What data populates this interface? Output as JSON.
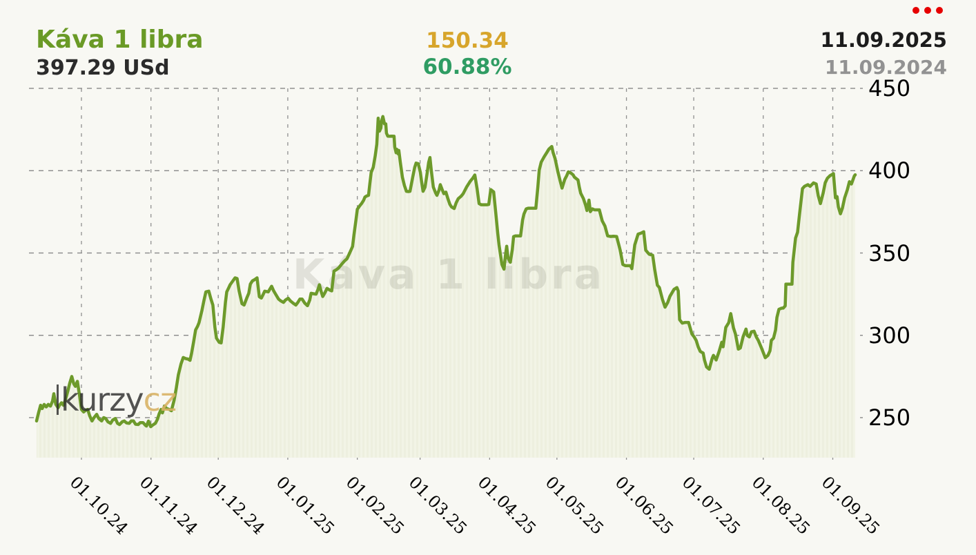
{
  "header": {
    "title": "Káva 1 libra",
    "price": "397.29 USd",
    "change_abs": "150.34",
    "change_pct": "60.88%",
    "date_current": "11.09.2025",
    "date_year_ago": "11.09.2024"
  },
  "watermark": "Káva 1 libra",
  "logo": {
    "text": "kurzy",
    "suffix": "cz"
  },
  "icons": {
    "menu": "red-three-dots-menu-icon"
  },
  "colors": {
    "background": "#f8f8f3",
    "line": "#6d9a2b",
    "area_fill": "#f2f4e6",
    "area_fill_stripe": "#edefdf",
    "grid": "#8f8f8f",
    "title_green": "#6a9a26",
    "change_gold": "#d7a52b",
    "change_green": "#2f9c63",
    "date_black": "#1c1c1c",
    "date_gray": "#929292",
    "menu_red": "#e60000",
    "watermark_gray": "rgba(70,70,55,0.13)",
    "logo_gold": "#d8b266"
  },
  "chart_data": {
    "type": "area",
    "title": "Káva 1 libra",
    "unit": "USd",
    "series_name": "Káva 1 libra",
    "x_start_date": "11.09.2024",
    "x_end_date": "11.09.2025",
    "grid": "dashed",
    "legend": "none",
    "ylim": [
      225,
      460
    ],
    "y_ticks": [
      450,
      400,
      350,
      300,
      250
    ],
    "x_ticks": [
      {
        "label": "01.10.24",
        "day": 20
      },
      {
        "label": "01.11.24",
        "day": 51
      },
      {
        "label": "01.12.24",
        "day": 81
      },
      {
        "label": "01.01.25",
        "day": 112
      },
      {
        "label": "01.02.25",
        "day": 143
      },
      {
        "label": "01.03.25",
        "day": 171
      },
      {
        "label": "01.04.25",
        "day": 202
      },
      {
        "label": "01.05.25",
        "day": 232
      },
      {
        "label": "01.06.25",
        "day": 263
      },
      {
        "label": "01.07.25",
        "day": 293
      },
      {
        "label": "01.08.25",
        "day": 324
      },
      {
        "label": "01.09.25",
        "day": 355
      }
    ],
    "points_format": [
      "days_from_2024-09-11",
      "price_USd"
    ],
    "points": [
      [
        0,
        248
      ],
      [
        0.9,
        253
      ],
      [
        1.8,
        257.5
      ],
      [
        2.5,
        255.5
      ],
      [
        3.4,
        258
      ],
      [
        4.3,
        256.5
      ],
      [
        5.2,
        258
      ],
      [
        6.2,
        257
      ],
      [
        7.1,
        260
      ],
      [
        7.7,
        264.5
      ],
      [
        8.6,
        258
      ],
      [
        9.6,
        256
      ],
      [
        10.2,
        257.5
      ],
      [
        11.1,
        259
      ],
      [
        12,
        257.5
      ],
      [
        12.9,
        261
      ],
      [
        13.9,
        266
      ],
      [
        14.8,
        271
      ],
      [
        15.7,
        275
      ],
      [
        16.6,
        270.5
      ],
      [
        17.3,
        269
      ],
      [
        18.2,
        272
      ],
      [
        19.1,
        264
      ],
      [
        20,
        255
      ],
      [
        21,
        253.5
      ],
      [
        21.9,
        254.5
      ],
      [
        22.8,
        255
      ],
      [
        23.7,
        251
      ],
      [
        24.7,
        248
      ],
      [
        25.6,
        250
      ],
      [
        26.8,
        252
      ],
      [
        27.7,
        249.5
      ],
      [
        29,
        248
      ],
      [
        29.9,
        250
      ],
      [
        30.8,
        249.5
      ],
      [
        31.8,
        247.5
      ],
      [
        33,
        246.5
      ],
      [
        33.9,
        248.5
      ],
      [
        35.1,
        249.5
      ],
      [
        36.1,
        246.5
      ],
      [
        37,
        245.8
      ],
      [
        38.2,
        247.5
      ],
      [
        39.1,
        248
      ],
      [
        40.1,
        246.8
      ],
      [
        41.3,
        246.5
      ],
      [
        42.2,
        248
      ],
      [
        43.2,
        248
      ],
      [
        44.1,
        246
      ],
      [
        45.3,
        245.8
      ],
      [
        46.2,
        247
      ],
      [
        47.5,
        247
      ],
      [
        48.4,
        245.5
      ],
      [
        49,
        244.9
      ],
      [
        49.9,
        247.9
      ],
      [
        50.9,
        244.5
      ],
      [
        51.8,
        245.5
      ],
      [
        53,
        246.6
      ],
      [
        53.9,
        249
      ],
      [
        54.6,
        252.1
      ],
      [
        55.5,
        255
      ],
      [
        56.1,
        252.9
      ],
      [
        57,
        257.1
      ],
      [
        58,
        255.5
      ],
      [
        59.2,
        255
      ],
      [
        60.1,
        254.2
      ],
      [
        61.3,
        260.5
      ],
      [
        62.3,
        268
      ],
      [
        63.2,
        276
      ],
      [
        64.4,
        282.7
      ],
      [
        65.4,
        286.5
      ],
      [
        66.6,
        285.8
      ],
      [
        67.5,
        285.6
      ],
      [
        68.4,
        284.8
      ],
      [
        69.1,
        289
      ],
      [
        70,
        296
      ],
      [
        70.9,
        303.3
      ],
      [
        71.8,
        305.5
      ],
      [
        72.4,
        307.6
      ],
      [
        73.7,
        315
      ],
      [
        74.6,
        321
      ],
      [
        75.5,
        326.4
      ],
      [
        76.8,
        326.8
      ],
      [
        77.7,
        322.2
      ],
      [
        78.6,
        318.4
      ],
      [
        79.5,
        305
      ],
      [
        80.2,
        298.3
      ],
      [
        81.4,
        295.8
      ],
      [
        82.3,
        295.4
      ],
      [
        83.2,
        305
      ],
      [
        84.2,
        320
      ],
      [
        84.8,
        326.4
      ],
      [
        85.7,
        329
      ],
      [
        86.3,
        330.7
      ],
      [
        87.5,
        333
      ],
      [
        88.5,
        334.9
      ],
      [
        89.4,
        334.5
      ],
      [
        90.3,
        327
      ],
      [
        91.6,
        319.2
      ],
      [
        92.5,
        318.4
      ],
      [
        93.7,
        322.6
      ],
      [
        94.6,
        325.5
      ],
      [
        95.3,
        331.1
      ],
      [
        96.2,
        333
      ],
      [
        97.4,
        334
      ],
      [
        98.3,
        334.9
      ],
      [
        99.3,
        323.4
      ],
      [
        100.2,
        322.6
      ],
      [
        101.1,
        325
      ],
      [
        101.7,
        326.8
      ],
      [
        103.3,
        326.4
      ],
      [
        104.2,
        328.5
      ],
      [
        104.8,
        329.8
      ],
      [
        105.7,
        327
      ],
      [
        107,
        324
      ],
      [
        107.9,
        322
      ],
      [
        108.8,
        321
      ],
      [
        110.1,
        320
      ],
      [
        111,
        321.5
      ],
      [
        112.2,
        322.5
      ],
      [
        113.1,
        321
      ],
      [
        114.4,
        319.5
      ],
      [
        115.6,
        318.4
      ],
      [
        116.5,
        320
      ],
      [
        117.4,
        322
      ],
      [
        118.4,
        322
      ],
      [
        119.6,
        319.5
      ],
      [
        120.8,
        318
      ],
      [
        121.8,
        321.5
      ],
      [
        122.4,
        325.5
      ],
      [
        123.6,
        325.2
      ],
      [
        124.6,
        325
      ],
      [
        125.5,
        328
      ],
      [
        126.1,
        330.7
      ],
      [
        127,
        326
      ],
      [
        127.6,
        323.6
      ],
      [
        128.6,
        326
      ],
      [
        129.5,
        328.5
      ],
      [
        130.7,
        327.5
      ],
      [
        131.6,
        327
      ],
      [
        132.6,
        339
      ],
      [
        133.8,
        340
      ],
      [
        134.7,
        341
      ],
      [
        135.9,
        343
      ],
      [
        137.2,
        345
      ],
      [
        138.4,
        346.5
      ],
      [
        139.6,
        350
      ],
      [
        140.9,
        354
      ],
      [
        141.5,
        361
      ],
      [
        142.4,
        370
      ],
      [
        143,
        376.6
      ],
      [
        144,
        378.5
      ],
      [
        144.9,
        380
      ],
      [
        145.8,
        382
      ],
      [
        146.4,
        384
      ],
      [
        147.3,
        384.7
      ],
      [
        148,
        385
      ],
      [
        148.6,
        392
      ],
      [
        149.2,
        399
      ],
      [
        150.1,
        402
      ],
      [
        151,
        409
      ],
      [
        151.7,
        416
      ],
      [
        152.3,
        431.9
      ],
      [
        152.9,
        424
      ],
      [
        153.5,
        425.9
      ],
      [
        153.8,
        430
      ],
      [
        154.4,
        432.9
      ],
      [
        155.1,
        428.5
      ],
      [
        155.7,
        428.4
      ],
      [
        156,
        422.8
      ],
      [
        156.6,
        421
      ],
      [
        157.5,
        420.9
      ],
      [
        158.4,
        421
      ],
      [
        159.4,
        420.9
      ],
      [
        159.7,
        414.4
      ],
      [
        160.3,
        410.9
      ],
      [
        160.6,
        413
      ],
      [
        161.2,
        410.2
      ],
      [
        161.5,
        412.3
      ],
      [
        162.2,
        405
      ],
      [
        163.1,
        396
      ],
      [
        164,
        391
      ],
      [
        164.9,
        387.5
      ],
      [
        165.8,
        387.3
      ],
      [
        166.5,
        387.5
      ],
      [
        167.7,
        396
      ],
      [
        168.6,
        402
      ],
      [
        169.2,
        404.6
      ],
      [
        170.2,
        404.2
      ],
      [
        171.1,
        399
      ],
      [
        171.7,
        393
      ],
      [
        172.3,
        387.5
      ],
      [
        173.2,
        390
      ],
      [
        174.2,
        399
      ],
      [
        174.8,
        405
      ],
      [
        175.4,
        408
      ],
      [
        176,
        400
      ],
      [
        176.9,
        390
      ],
      [
        177.9,
        386.5
      ],
      [
        178.5,
        385
      ],
      [
        179.4,
        388
      ],
      [
        180,
        391.5
      ],
      [
        181,
        388
      ],
      [
        181.6,
        386
      ],
      [
        182.5,
        387
      ],
      [
        183.4,
        383
      ],
      [
        184.3,
        379.5
      ],
      [
        185,
        378
      ],
      [
        186.2,
        377
      ],
      [
        187.1,
        380.5
      ],
      [
        188,
        383
      ],
      [
        189.3,
        384.5
      ],
      [
        190.2,
        386
      ],
      [
        191.7,
        390
      ],
      [
        193.3,
        393.5
      ],
      [
        194.5,
        395.5
      ],
      [
        195.4,
        397.4
      ],
      [
        196.4,
        389
      ],
      [
        197.3,
        380
      ],
      [
        198.2,
        379.3
      ],
      [
        199.5,
        379.3
      ],
      [
        200.7,
        379.3
      ],
      [
        201.6,
        379.5
      ],
      [
        202.5,
        388.5
      ],
      [
        203.8,
        387.1
      ],
      [
        204.7,
        375
      ],
      [
        205.6,
        362
      ],
      [
        206.2,
        354.9
      ],
      [
        207.5,
        343
      ],
      [
        208.4,
        340.2
      ],
      [
        209,
        348
      ],
      [
        209.6,
        354.1
      ],
      [
        210.2,
        347
      ],
      [
        211.2,
        344.4
      ],
      [
        212.1,
        352
      ],
      [
        212.7,
        360
      ],
      [
        213.6,
        360.4
      ],
      [
        214.9,
        360.4
      ],
      [
        215.8,
        360.4
      ],
      [
        216.7,
        370
      ],
      [
        217.3,
        373.7
      ],
      [
        218.3,
        376.8
      ],
      [
        219.2,
        377.2
      ],
      [
        220.4,
        377.2
      ],
      [
        221.3,
        377.2
      ],
      [
        222.6,
        377.2
      ],
      [
        223.5,
        390
      ],
      [
        224.1,
        400.3
      ],
      [
        225,
        405.2
      ],
      [
        226.3,
        408.4
      ],
      [
        227.5,
        411
      ],
      [
        228.4,
        413
      ],
      [
        229.7,
        414.7
      ],
      [
        230.3,
        411
      ],
      [
        231.2,
        407.3
      ],
      [
        232.4,
        399.6
      ],
      [
        233.4,
        394
      ],
      [
        234.3,
        389.4
      ],
      [
        235.5,
        394.7
      ],
      [
        236.4,
        397
      ],
      [
        237.1,
        399.3
      ],
      [
        238.3,
        398.5
      ],
      [
        239.2,
        397.5
      ],
      [
        239.8,
        396.1
      ],
      [
        241.4,
        394.3
      ],
      [
        242,
        390
      ],
      [
        242.6,
        386.3
      ],
      [
        243.8,
        383.1
      ],
      [
        244.8,
        379
      ],
      [
        245.4,
        375.8
      ],
      [
        246.3,
        382.1
      ],
      [
        246.9,
        375.1
      ],
      [
        247.8,
        376.8
      ],
      [
        248.8,
        376.2
      ],
      [
        250,
        376.2
      ],
      [
        250.9,
        376.2
      ],
      [
        252.2,
        369.5
      ],
      [
        253.4,
        366.4
      ],
      [
        254.6,
        360.4
      ],
      [
        255.9,
        360
      ],
      [
        257.1,
        360.2
      ],
      [
        258.6,
        360
      ],
      [
        259.6,
        355
      ],
      [
        260.2,
        351.7
      ],
      [
        261.4,
        343
      ],
      [
        262.6,
        342.3
      ],
      [
        263.6,
        342.3
      ],
      [
        264.8,
        342.3
      ],
      [
        265.4,
        340.5
      ],
      [
        266.7,
        354.9
      ],
      [
        268.2,
        361.5
      ],
      [
        269.4,
        362
      ],
      [
        270.7,
        362.9
      ],
      [
        271.6,
        351.7
      ],
      [
        273.1,
        349.3
      ],
      [
        274.7,
        348.6
      ],
      [
        275.6,
        340
      ],
      [
        276.8,
        330.4
      ],
      [
        277.7,
        329
      ],
      [
        279,
        322
      ],
      [
        280.2,
        317.1
      ],
      [
        281.4,
        320
      ],
      [
        282.4,
        323.7
      ],
      [
        284.2,
        327.9
      ],
      [
        285.5,
        329
      ],
      [
        286.1,
        327
      ],
      [
        286.7,
        309.5
      ],
      [
        287.9,
        307.4
      ],
      [
        289.2,
        307.8
      ],
      [
        290.1,
        307.8
      ],
      [
        290.7,
        307.8
      ],
      [
        292.2,
        300.8
      ],
      [
        293.2,
        299
      ],
      [
        294.1,
        296.9
      ],
      [
        295,
        293
      ],
      [
        295.9,
        290.2
      ],
      [
        297.2,
        289.2
      ],
      [
        297.8,
        285
      ],
      [
        298.7,
        280.8
      ],
      [
        299.9,
        279.4
      ],
      [
        301.2,
        285.9
      ],
      [
        301.8,
        287.8
      ],
      [
        303,
        285
      ],
      [
        304.3,
        290.2
      ],
      [
        305.5,
        295.8
      ],
      [
        306.1,
        293
      ],
      [
        307.3,
        304.8
      ],
      [
        308.6,
        307.6
      ],
      [
        309.5,
        313.2
      ],
      [
        310.7,
        304.6
      ],
      [
        311.6,
        300.8
      ],
      [
        312.9,
        291.6
      ],
      [
        313.8,
        292.3
      ],
      [
        315,
        299
      ],
      [
        316.3,
        303.8
      ],
      [
        316.9,
        299.9
      ],
      [
        317.8,
        299
      ],
      [
        318.7,
        302.1
      ],
      [
        319.9,
        302.5
      ],
      [
        320.9,
        299
      ],
      [
        321.8,
        296.9
      ],
      [
        323.3,
        292
      ],
      [
        324.6,
        287.5
      ],
      [
        324.9,
        286.4
      ],
      [
        326.1,
        287.8
      ],
      [
        327,
        290.6
      ],
      [
        327.6,
        296.9
      ],
      [
        328.6,
        298.3
      ],
      [
        329.5,
        303.2
      ],
      [
        330.1,
        310.9
      ],
      [
        331,
        315.8
      ],
      [
        332.2,
        316.5
      ],
      [
        332.9,
        316.5
      ],
      [
        333.8,
        317.9
      ],
      [
        334.1,
        331.1
      ],
      [
        335.3,
        331.1
      ],
      [
        336.2,
        331.1
      ],
      [
        336.8,
        331.1
      ],
      [
        337.2,
        344.4
      ],
      [
        338.4,
        359.1
      ],
      [
        339.3,
        362.6
      ],
      [
        340.2,
        373.8
      ],
      [
        341.5,
        389.1
      ],
      [
        342.4,
        390.5
      ],
      [
        343.9,
        391.5
      ],
      [
        344.9,
        390.5
      ],
      [
        346.4,
        392.6
      ],
      [
        347.6,
        391.9
      ],
      [
        348.5,
        384.9
      ],
      [
        349.5,
        380
      ],
      [
        350.7,
        386.3
      ],
      [
        351.6,
        392.6
      ],
      [
        352.6,
        395.4
      ],
      [
        353.8,
        397
      ],
      [
        355.3,
        398.2
      ],
      [
        356.2,
        383.5
      ],
      [
        356.9,
        384.2
      ],
      [
        357.5,
        378
      ],
      [
        358.4,
        373.8
      ],
      [
        359.3,
        377.3
      ],
      [
        360.3,
        383.5
      ],
      [
        361.5,
        388.4
      ],
      [
        362.4,
        393.3
      ],
      [
        363.3,
        391.9
      ],
      [
        364.6,
        396.8
      ],
      [
        365,
        397.5
      ]
    ]
  }
}
